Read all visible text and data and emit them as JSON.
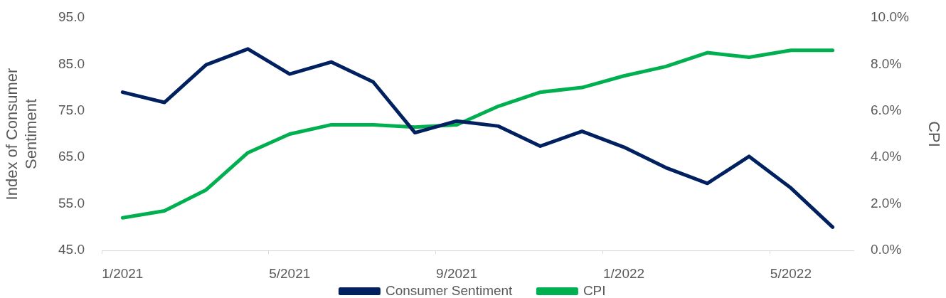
{
  "chart_data": {
    "type": "line",
    "ylabel": "Index of Consumer Sentiment",
    "y2label": "CPI",
    "categories": [
      "1/2021",
      null,
      null,
      null,
      "5/2021",
      null,
      null,
      null,
      "9/2021",
      null,
      null,
      null,
      "1/2022",
      null,
      null,
      null,
      "5/2022",
      null
    ],
    "series": [
      {
        "name": "Consumer Sentiment",
        "color": "#002060",
        "values": [
          79.0,
          76.8,
          84.9,
          88.3,
          82.9,
          85.5,
          81.2,
          70.3,
          72.8,
          71.7,
          67.4,
          70.6,
          67.2,
          62.8,
          59.4,
          65.2,
          58.4,
          50.0
        ]
      },
      {
        "name": "CPI",
        "color": "#00b050",
        "axis": "y2",
        "values": [
          1.4,
          1.7,
          2.6,
          4.2,
          5.0,
          5.4,
          5.4,
          5.3,
          5.4,
          6.2,
          6.8,
          7.0,
          7.5,
          7.9,
          8.5,
          8.3,
          8.6,
          8.6
        ]
      }
    ],
    "ylim": [
      45,
      95
    ],
    "yticks": [
      {
        "value": 45,
        "label": "45.0"
      },
      {
        "value": 55,
        "label": "55.0"
      },
      {
        "value": 65,
        "label": "65.0"
      },
      {
        "value": 75,
        "label": "75.0"
      },
      {
        "value": 85,
        "label": "85.0"
      },
      {
        "value": 95,
        "label": "95.0"
      }
    ],
    "y2lim": [
      0,
      10
    ],
    "y2ticks": [
      {
        "value": 0,
        "label": "0.0%"
      },
      {
        "value": 2,
        "label": "2.0%"
      },
      {
        "value": 4,
        "label": "4.0%"
      },
      {
        "value": 6,
        "label": "6.0%"
      },
      {
        "value": 8,
        "label": "8.0%"
      },
      {
        "value": 10,
        "label": "10.0%"
      }
    ],
    "legend": "bottom"
  }
}
